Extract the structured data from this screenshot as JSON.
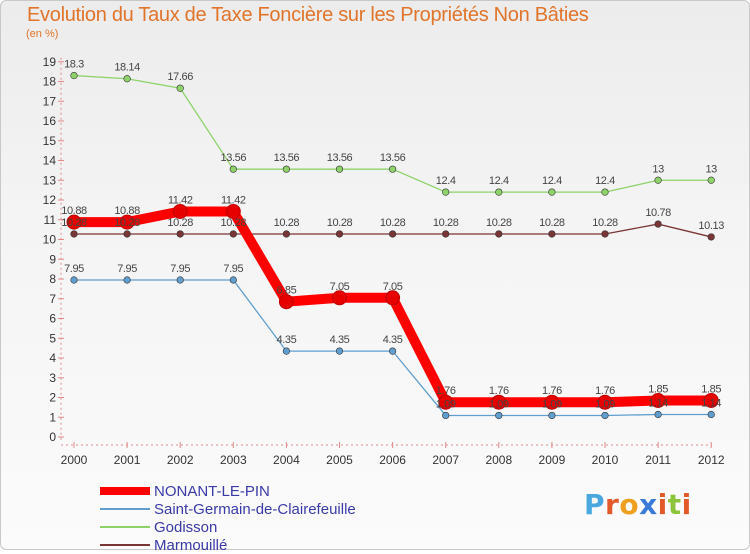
{
  "header": {
    "title": "Evolution du Taux de Taxe Foncière sur les Propriétés Non Bâties",
    "subtitle": "(en %)"
  },
  "logo": {
    "text": "Proxiti",
    "letters": [
      {
        "ch": "P",
        "color": "#4aa8e0"
      },
      {
        "ch": "r",
        "color": "#e35a2a"
      },
      {
        "ch": "o",
        "color": "#f0a020"
      },
      {
        "ch": "x",
        "color": "#3a7ad8"
      },
      {
        "ch": "i",
        "color": "#e35a2a"
      },
      {
        "ch": "t",
        "color": "#8cc43c"
      },
      {
        "ch": "i",
        "color": "#e35a2a"
      }
    ]
  },
  "chart_data": {
    "type": "line",
    "title": "Evolution du Taux de Taxe Foncière sur les Propriétés Non Bâties",
    "ylabel": "(en %)",
    "xlabel": "",
    "x": [
      "2000",
      "2001",
      "2002",
      "2003",
      "2004",
      "2005",
      "2006",
      "2007",
      "2008",
      "2009",
      "2010",
      "2011",
      "2012"
    ],
    "ylim": [
      0,
      19
    ],
    "yticks": [
      0,
      1,
      2,
      3,
      4,
      5,
      6,
      7,
      8,
      9,
      10,
      11,
      12,
      13,
      14,
      15,
      16,
      17,
      18,
      19
    ],
    "grid": false,
    "legend": "bottom-left",
    "series": [
      {
        "name": "NONANT-LE-PIN",
        "color": "#ff0000",
        "values": [
          10.88,
          10.88,
          11.42,
          11.42,
          6.85,
          7.05,
          7.05,
          1.76,
          1.76,
          1.76,
          1.76,
          1.85,
          1.85
        ],
        "labels": [
          "10.88",
          "10.88",
          "11.42",
          "11.42",
          "6.85",
          "7.05",
          "7.05",
          "1.76",
          "1.76",
          "1.76",
          "1.76",
          "1.85",
          "1.85"
        ]
      },
      {
        "name": "Saint-Germain-de-Clairefeuille",
        "color": "#5f9ecf",
        "values": [
          7.95,
          7.95,
          7.95,
          7.95,
          4.35,
          4.35,
          4.35,
          1.09,
          1.09,
          1.09,
          1.09,
          1.14,
          1.14
        ],
        "labels": [
          "7.95",
          "7.95",
          "7.95",
          "7.95",
          "4.35",
          "4.35",
          "4.35",
          "1.09",
          "1.09",
          "1.09",
          "1.09",
          "1.14",
          "1.14"
        ]
      },
      {
        "name": "Godisson",
        "color": "#8ed36a",
        "values": [
          18.3,
          18.14,
          17.66,
          13.56,
          13.56,
          13.56,
          13.56,
          12.4,
          12.4,
          12.4,
          12.4,
          13,
          13
        ],
        "labels": [
          "18.3",
          "18.14",
          "17.66",
          "13.56",
          "13.56",
          "13.56",
          "13.56",
          "12.4",
          "12.4",
          "12.4",
          "12.4",
          "13",
          "13"
        ]
      },
      {
        "name": "Marmouillé",
        "color": "#7a3535",
        "values": [
          10.28,
          10.28,
          10.28,
          10.28,
          10.28,
          10.28,
          10.28,
          10.28,
          10.28,
          10.28,
          10.28,
          10.78,
          10.13
        ],
        "labels": [
          "10.28",
          "10.28",
          "10.28",
          "10.28",
          "10.28",
          "10.28",
          "10.28",
          "10.28",
          "10.28",
          "10.28",
          "10.28",
          "10.78",
          "10.13"
        ]
      }
    ]
  }
}
